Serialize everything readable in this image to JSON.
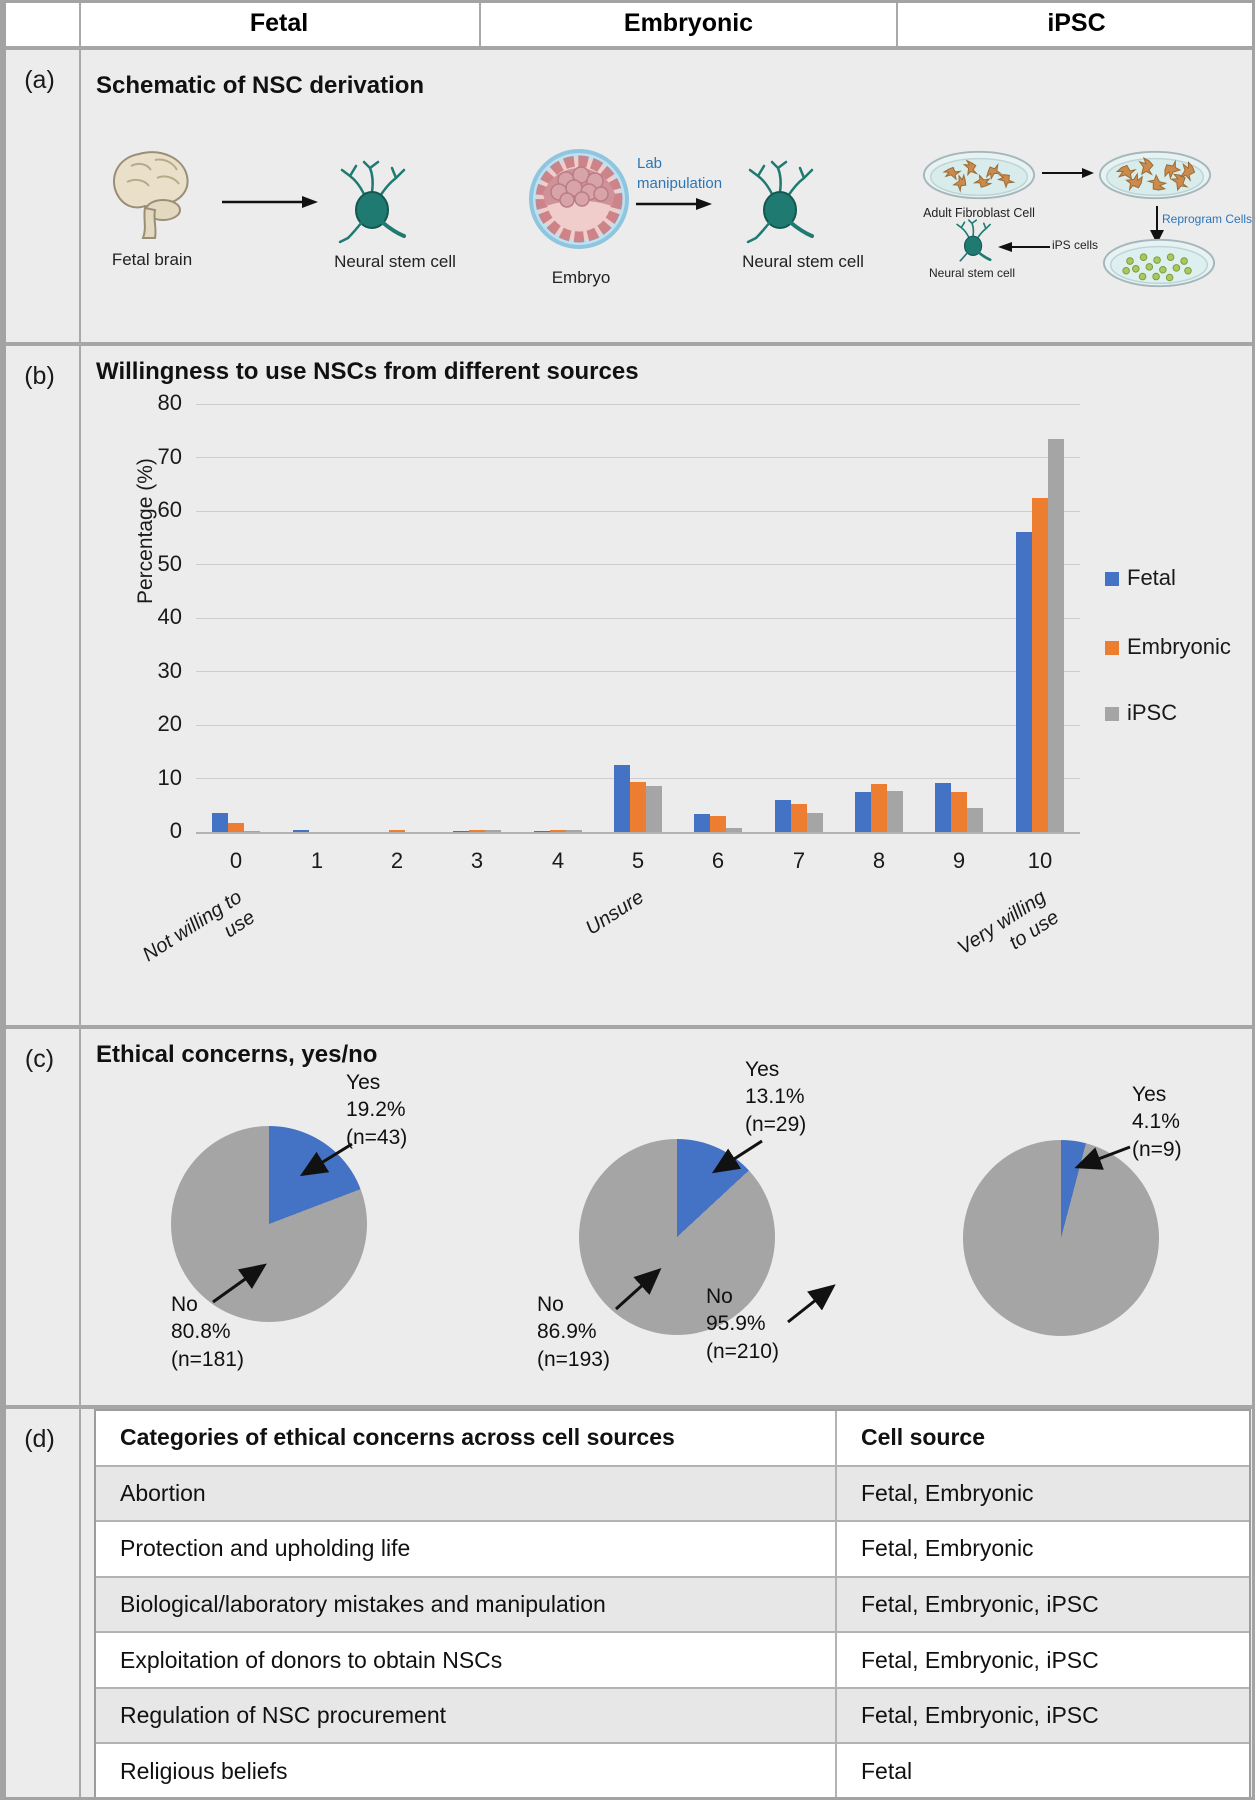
{
  "header": {
    "columns": [
      "Fetal",
      "Embryonic",
      "iPSC"
    ]
  },
  "panel_a": {
    "label": "(a)",
    "title": "Schematic of NSC derivation",
    "fetal": {
      "source_label": "Fetal brain",
      "result_label": "Neural stem cell"
    },
    "embryonic": {
      "source_label": "Embryo",
      "process_label": "Lab manipulation",
      "result_label": "Neural stem cell"
    },
    "ipsc": {
      "dish1_label": "Adult Fibroblast Cell",
      "process1_label": "Reprogram Cells",
      "ips_label": "iPS cells",
      "result_label": "Neural stem cell"
    }
  },
  "panel_b": {
    "label": "(b)",
    "title": "Willingness to use NSCs from different sources"
  },
  "panel_c": {
    "label": "(c)",
    "title": "Ethical concerns, yes/no"
  },
  "panel_d": {
    "label": "(d)",
    "table": {
      "headers": [
        "Categories of ethical concerns across cell sources",
        "Cell source"
      ],
      "rows": [
        [
          "Abortion",
          "Fetal, Embryonic"
        ],
        [
          "Protection and upholding life",
          "Fetal, Embryonic"
        ],
        [
          "Biological/laboratory mistakes and manipulation",
          "Fetal, Embryonic, iPSC"
        ],
        [
          "Exploitation of donors to obtain NSCs",
          "Fetal, Embryonic, iPSC"
        ],
        [
          "Regulation of NSC procurement",
          "Fetal, Embryonic, iPSC"
        ],
        [
          "Religious beliefs",
          "Fetal"
        ]
      ]
    }
  },
  "chart_data": [
    {
      "type": "bar",
      "title": "Willingness to use NSCs from different sources",
      "categories": [
        "0",
        "1",
        "2",
        "3",
        "4",
        "5",
        "6",
        "7",
        "8",
        "9",
        "10"
      ],
      "series": [
        {
          "name": "Fetal",
          "color": "#4472C4",
          "values": [
            3.6,
            0.3,
            0,
            0.2,
            0.2,
            12.5,
            3.4,
            6.0,
            7.4,
            9.2,
            56.0
          ]
        },
        {
          "name": "Embryonic",
          "color": "#ED7D31",
          "values": [
            1.7,
            0,
            0.4,
            0.4,
            0.4,
            9.3,
            3.0,
            5.3,
            9.0,
            7.5,
            62.4
          ]
        },
        {
          "name": "iPSC",
          "color": "#A5A5A5",
          "values": [
            0.1,
            0,
            0,
            0.3,
            0.3,
            8.6,
            0.7,
            3.6,
            7.6,
            4.4,
            73.5
          ]
        }
      ],
      "ylabel": "Percentage (%)",
      "ylim": [
        0,
        80
      ],
      "ytick_step": 10,
      "grid": true,
      "legend_position": "right",
      "annotations": [
        {
          "index": 0,
          "text": "Not willing to use"
        },
        {
          "index": 5,
          "text": "Unsure"
        },
        {
          "index": 10,
          "text": "Very willing to use"
        }
      ]
    },
    {
      "type": "pie",
      "title": "Fetal",
      "labels": [
        "Yes",
        "No"
      ],
      "values": [
        19.2,
        80.8
      ],
      "counts": [
        43,
        181
      ],
      "colors": [
        "#4472C4",
        "#A5A5A5"
      ]
    },
    {
      "type": "pie",
      "title": "Embryonic",
      "labels": [
        "Yes",
        "No"
      ],
      "values": [
        13.1,
        86.9
      ],
      "counts": [
        29,
        193
      ],
      "colors": [
        "#4472C4",
        "#A5A5A5"
      ]
    },
    {
      "type": "pie",
      "title": "iPSC",
      "labels": [
        "Yes",
        "No"
      ],
      "values": [
        4.1,
        95.9
      ],
      "counts": [
        9,
        210
      ],
      "colors": [
        "#4472C4",
        "#A5A5A5"
      ]
    }
  ]
}
